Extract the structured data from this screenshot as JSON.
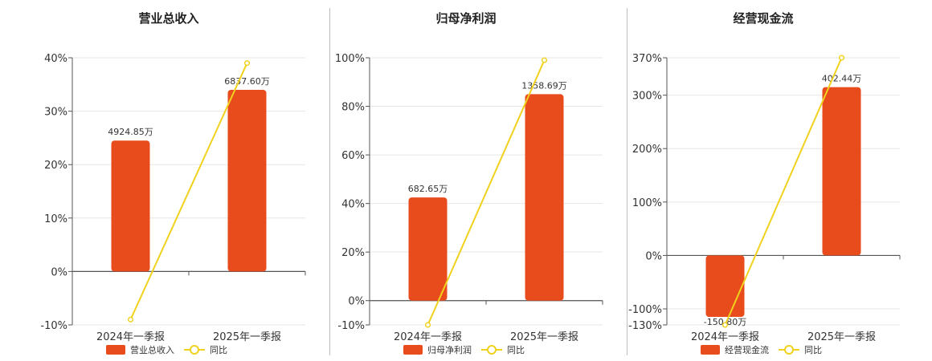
{
  "chart_data": [
    {
      "type": "bar",
      "title": "营业总收入",
      "categories": [
        "2024年一季报",
        "2025年一季报"
      ],
      "series": [
        {
          "name": "营业总收入",
          "type": "bar",
          "values": [
            24.5,
            34.0
          ],
          "labels": [
            "4924.85万",
            "6837.60万"
          ]
        },
        {
          "name": "同比",
          "type": "line",
          "values": [
            -9.0,
            39.0
          ]
        }
      ],
      "yticks": [
        -10,
        0,
        10,
        20,
        30,
        40
      ],
      "ytick_labels": [
        "-10%",
        "0%",
        "10%",
        "20%",
        "30%",
        "40%"
      ],
      "ylim": [
        -10,
        40
      ],
      "grid": true,
      "legend": "bottom"
    },
    {
      "type": "bar",
      "title": "归母净利润",
      "categories": [
        "2024年一季报",
        "2025年一季报"
      ],
      "series": [
        {
          "name": "归母净利润",
          "type": "bar",
          "values": [
            42.5,
            85.0
          ],
          "labels": [
            "682.65万",
            "1358.69万"
          ]
        },
        {
          "name": "同比",
          "type": "line",
          "values": [
            -10.0,
            99.0
          ]
        }
      ],
      "yticks": [
        -10,
        0,
        20,
        40,
        60,
        80,
        100
      ],
      "ytick_labels": [
        "-10%",
        "0%",
        "20%",
        "40%",
        "60%",
        "80%",
        "100%"
      ],
      "ylim": [
        -10,
        100
      ],
      "grid": true,
      "legend": "bottom"
    },
    {
      "type": "bar",
      "title": "经营现金流",
      "categories": [
        "2024年一季报",
        "2025年一季报"
      ],
      "series": [
        {
          "name": "经营现金流",
          "type": "bar",
          "values": [
            -115,
            315
          ],
          "labels": [
            "-150.80万",
            "402.44万"
          ]
        },
        {
          "name": "同比",
          "type": "line",
          "values": [
            -130,
            370
          ]
        }
      ],
      "yticks": [
        -130,
        -100,
        0,
        100,
        200,
        300,
        370
      ],
      "ytick_labels": [
        "-130%",
        "-100%",
        "0%",
        "100%",
        "200%",
        "300%",
        "370%"
      ],
      "ylim": [
        -130,
        370
      ],
      "grid": true,
      "legend": "bottom"
    }
  ],
  "colors": {
    "bar": "#e84b1c",
    "line": "#f0d21e",
    "grid": "#e6e6e6",
    "axis": "#555555"
  }
}
